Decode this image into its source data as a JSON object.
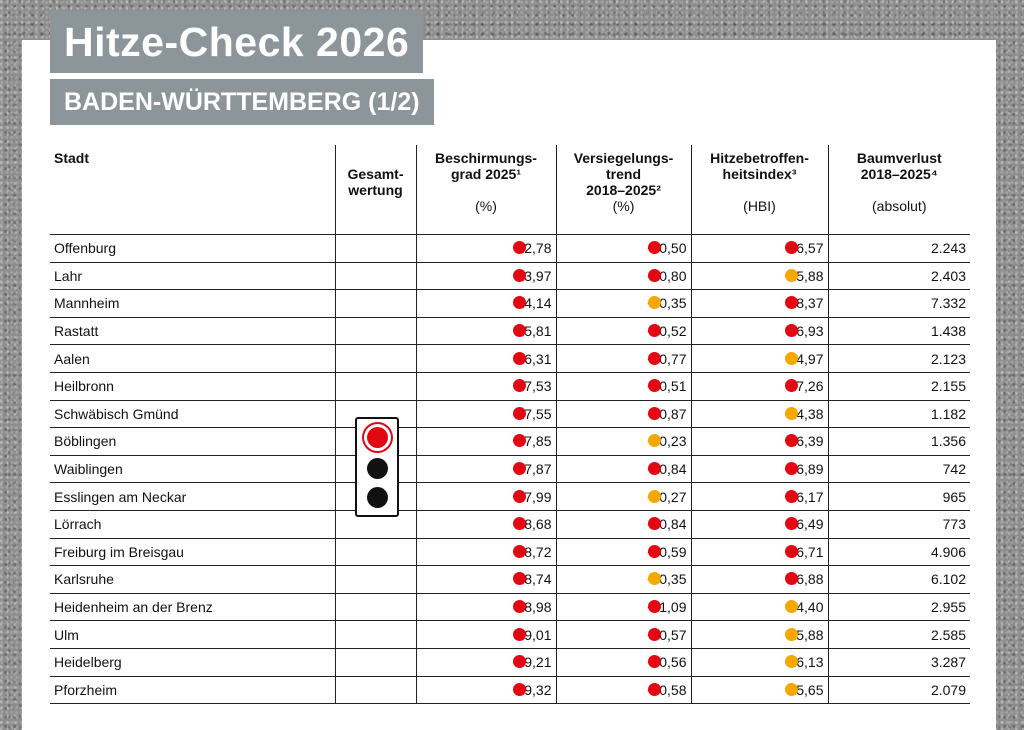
{
  "title": "Hitze-Check 2026",
  "subtitle": "BADEN-WÜRTTEMBERG (1/2)",
  "colors": {
    "red": "#e30613",
    "orange": "#f5a800",
    "header_box": "#8c959a"
  },
  "headers": {
    "stadt": "Stadt",
    "gesamt": "Gesamt-\nwertung",
    "beschirmung": "Beschirmungs-\ngrad 2025¹",
    "beschirmung_unit": "(%)",
    "versiegelung": "Versiegelungs-\ntrend\n2018–2025²",
    "versiegelung_unit": "(%)",
    "hitze": "Hitzebetroffen-\nheitsindex³",
    "hitze_unit": "(HBI)",
    "baum": "Baumverlust\n2018–2025⁴",
    "baum_unit": "(absolut)"
  },
  "gesamtwertung": "red",
  "rows": [
    {
      "city": "Offenburg",
      "beschirmung": "12,78",
      "b_color": "red",
      "versiegelung": "+ 0,50",
      "v_color": "red",
      "hbi": "16,57",
      "h_color": "red",
      "baum": "2.243"
    },
    {
      "city": "Lahr",
      "beschirmung": "13,97",
      "b_color": "red",
      "versiegelung": "+ 0,80",
      "v_color": "red",
      "hbi": "15,88",
      "h_color": "orange",
      "baum": "2.403"
    },
    {
      "city": "Mannheim",
      "beschirmung": "14,14",
      "b_color": "red",
      "versiegelung": "+ 0,35",
      "v_color": "orange",
      "hbi": "18,37",
      "h_color": "red",
      "baum": "7.332"
    },
    {
      "city": "Rastatt",
      "beschirmung": "15,81",
      "b_color": "red",
      "versiegelung": "+ 0,52",
      "v_color": "red",
      "hbi": "16,93",
      "h_color": "red",
      "baum": "1.438"
    },
    {
      "city": "Aalen",
      "beschirmung": "16,31",
      "b_color": "red",
      "versiegelung": "+ 0,77",
      "v_color": "red",
      "hbi": "14,97",
      "h_color": "orange",
      "baum": "2.123"
    },
    {
      "city": "Heilbronn",
      "beschirmung": "17,53",
      "b_color": "red",
      "versiegelung": "+ 0,51",
      "v_color": "red",
      "hbi": "17,26",
      "h_color": "red",
      "baum": "2.155"
    },
    {
      "city": "Schwäbisch Gmünd",
      "beschirmung": "17,55",
      "b_color": "red",
      "versiegelung": "+ 0,87",
      "v_color": "red",
      "hbi": "14,38",
      "h_color": "orange",
      "baum": "1.182"
    },
    {
      "city": "Böblingen",
      "beschirmung": "17,85",
      "b_color": "red",
      "versiegelung": "+ 0,23",
      "v_color": "orange",
      "hbi": "16,39",
      "h_color": "red",
      "baum": "1.356"
    },
    {
      "city": "Waiblingen",
      "beschirmung": "17,87",
      "b_color": "red",
      "versiegelung": "+ 0,84",
      "v_color": "red",
      "hbi": "16,89",
      "h_color": "red",
      "baum": "742"
    },
    {
      "city": "Esslingen am Neckar",
      "beschirmung": "17,99",
      "b_color": "red",
      "versiegelung": "+ 0,27",
      "v_color": "orange",
      "hbi": "16,17",
      "h_color": "red",
      "baum": "965"
    },
    {
      "city": "Lörrach",
      "beschirmung": "18,68",
      "b_color": "red",
      "versiegelung": "+ 0,84",
      "v_color": "red",
      "hbi": "16,49",
      "h_color": "red",
      "baum": "773"
    },
    {
      "city": "Freiburg im Breisgau",
      "beschirmung": "18,72",
      "b_color": "red",
      "versiegelung": "+ 0,59",
      "v_color": "red",
      "hbi": "16,71",
      "h_color": "red",
      "baum": "4.906"
    },
    {
      "city": "Karlsruhe",
      "beschirmung": "18,74",
      "b_color": "red",
      "versiegelung": "+ 0,35",
      "v_color": "orange",
      "hbi": "16,88",
      "h_color": "red",
      "baum": "6.102"
    },
    {
      "city": "Heidenheim an der Brenz",
      "beschirmung": "18,98",
      "b_color": "red",
      "versiegelung": "+ 1,09",
      "v_color": "red",
      "hbi": "14,40",
      "h_color": "orange",
      "baum": "2.955"
    },
    {
      "city": "Ulm",
      "beschirmung": "19,01",
      "b_color": "red",
      "versiegelung": "+ 0,57",
      "v_color": "red",
      "hbi": "15,88",
      "h_color": "orange",
      "baum": "2.585"
    },
    {
      "city": "Heidelberg",
      "beschirmung": "19,21",
      "b_color": "red",
      "versiegelung": "+ 0,56",
      "v_color": "red",
      "hbi": "16,13",
      "h_color": "orange",
      "baum": "3.287"
    },
    {
      "city": "Pforzheim",
      "beschirmung": "19,32",
      "b_color": "red",
      "versiegelung": "+ 0,58",
      "v_color": "red",
      "hbi": "15,65",
      "h_color": "orange",
      "baum": "2.079"
    }
  ]
}
